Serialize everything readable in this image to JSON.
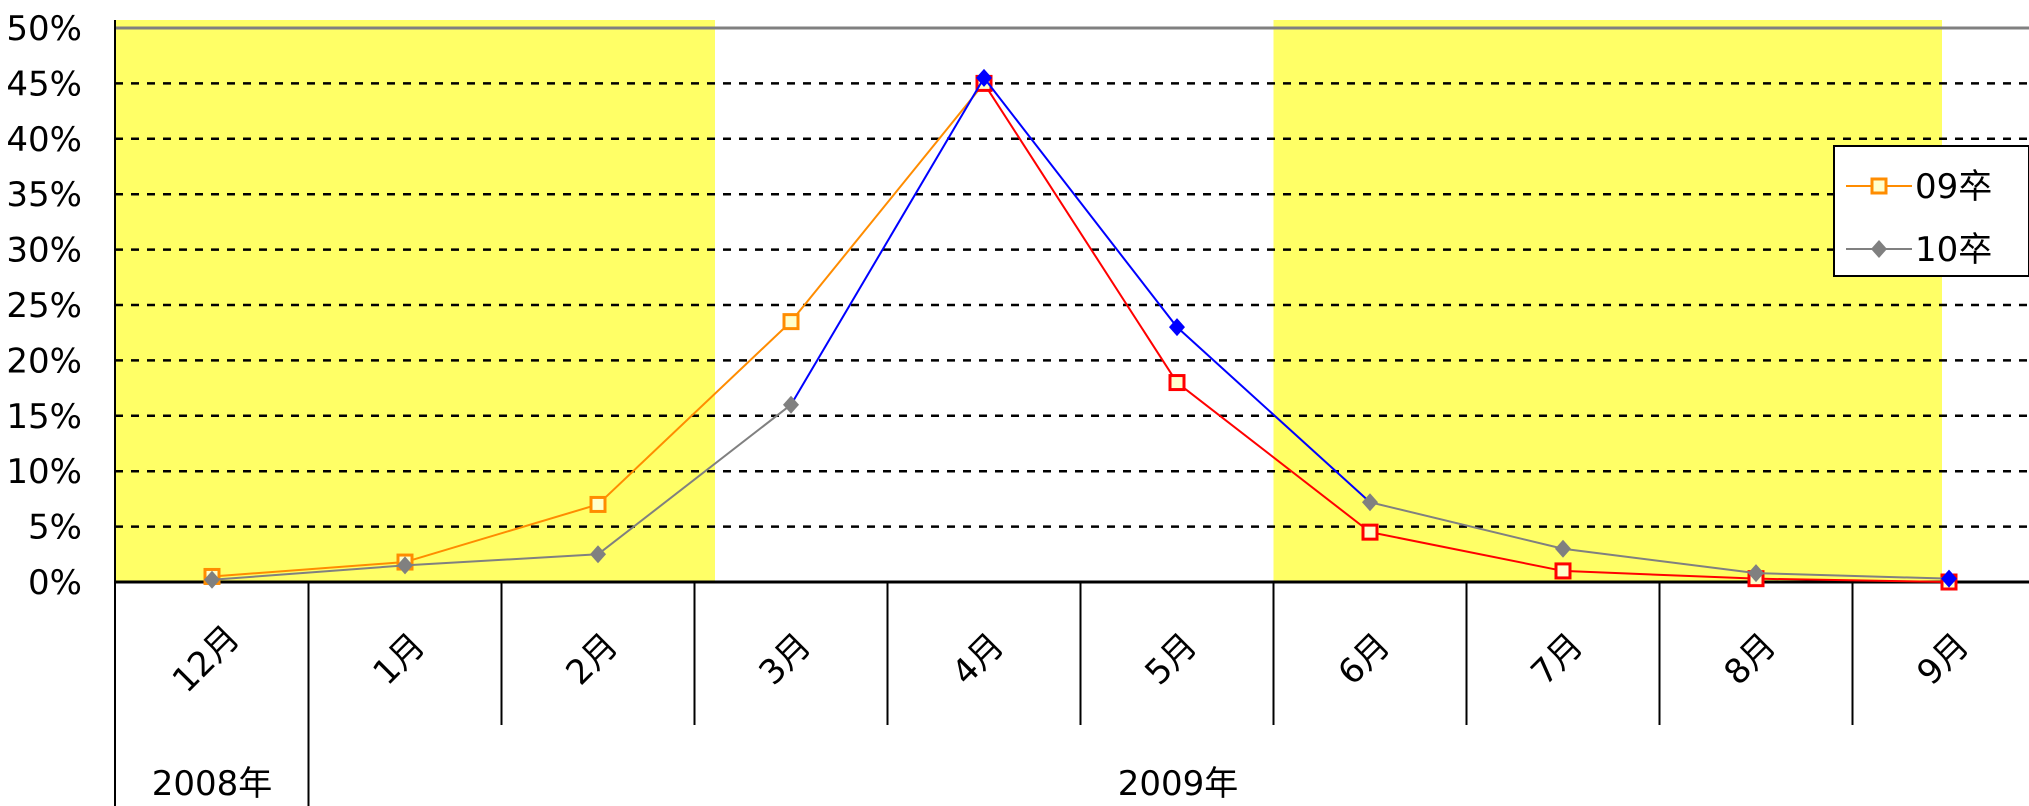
{
  "chart_data": {
    "type": "line",
    "categories": [
      "12月",
      "1月",
      "2月",
      "3月",
      "4月",
      "5月",
      "6月",
      "7月",
      "8月",
      "9月"
    ],
    "year_groups": [
      {
        "label": "2008年",
        "span": [
          0,
          0
        ]
      },
      {
        "label": "2009年",
        "span": [
          1,
          9
        ]
      }
    ],
    "series": [
      {
        "name": "09卒",
        "values": [
          0.5,
          1.8,
          7.0,
          23.5,
          45.0,
          18.0,
          4.5,
          1.0,
          0.3,
          0.0
        ],
        "color": "#ff8c00",
        "segment_color_after_peak": "#ff0000",
        "marker": "square"
      },
      {
        "name": "10卒",
        "values": [
          0.2,
          1.5,
          2.5,
          16.0,
          45.5,
          23.0,
          7.2,
          3.0,
          0.8,
          0.3
        ],
        "color": "#808080",
        "segment_color_around_peak": "#0000ff",
        "marker": "diamond"
      }
    ],
    "yticks": [
      "0%",
      "5%",
      "10%",
      "15%",
      "20%",
      "25%",
      "30%",
      "35%",
      "40%",
      "45%",
      "50%"
    ],
    "ylim": [
      0,
      50
    ],
    "shaded_ranges": [
      [
        0,
        3
      ],
      [
        6,
        9
      ]
    ],
    "shade_color": "#ffff66",
    "grid": "dashed",
    "legend_position": "right"
  }
}
